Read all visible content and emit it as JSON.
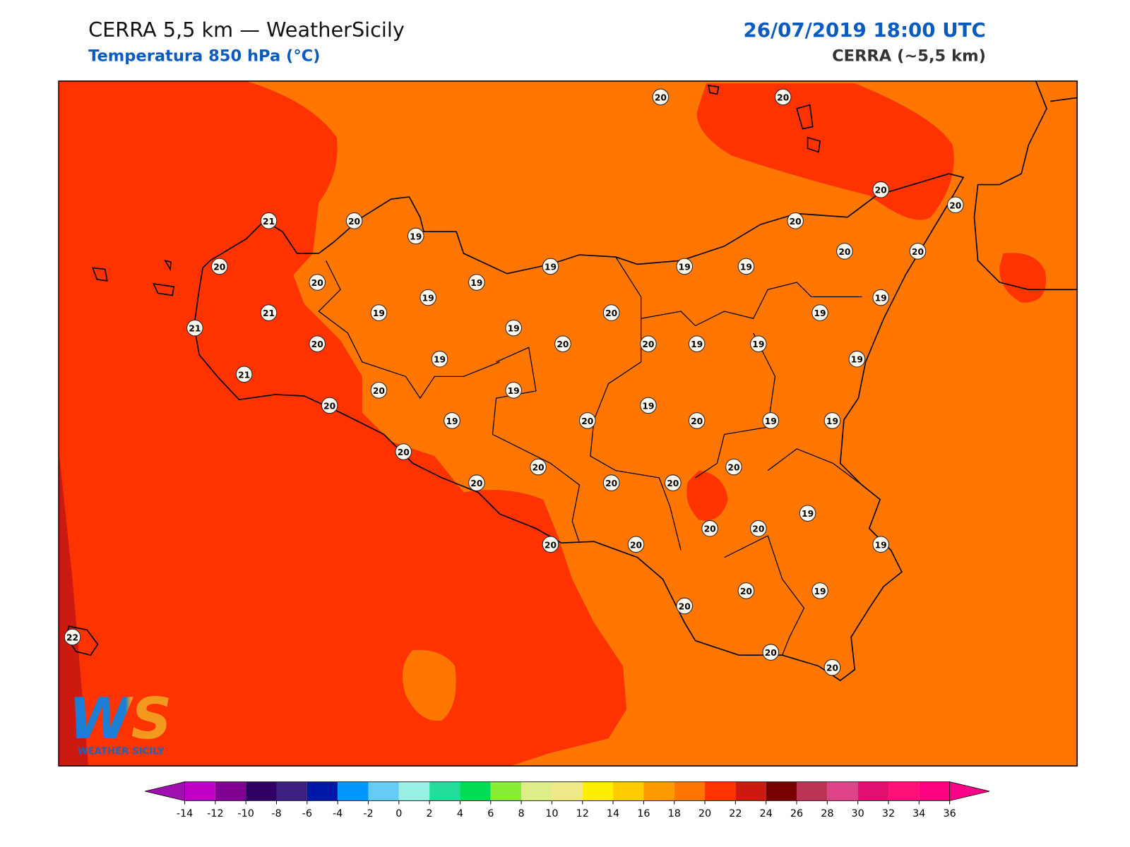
{
  "header": {
    "title": "CERRA 5,5 km — WeatherSicily",
    "subtitle": "Temperatura 850 hPa (°C)",
    "date": "26/07/2019 18:00 UTC",
    "model": "CERRA (~5,5 km)"
  },
  "stations": [
    20,
    20,
    20,
    20,
    21,
    20,
    19,
    20,
    20,
    20,
    19,
    19,
    19,
    19,
    19,
    20,
    20,
    21,
    19,
    19,
    20,
    19,
    19,
    21,
    20,
    20,
    20,
    19,
    19,
    19,
    19,
    21,
    20,
    19,
    20,
    19,
    20,
    19,
    20,
    19,
    19,
    20,
    20,
    20,
    20,
    20,
    20,
    19,
    20,
    20,
    20,
    20,
    19,
    20,
    19,
    20,
    22,
    20,
    20
  ],
  "colorbar": {
    "ticks": [
      -14,
      -12,
      -10,
      -8,
      -6,
      -4,
      -2,
      0,
      2,
      4,
      6,
      8,
      10,
      12,
      14,
      16,
      18,
      20,
      22,
      24,
      26,
      28,
      30,
      32,
      34,
      36
    ],
    "colors": [
      "#c000c8",
      "#800090",
      "#300060",
      "#3c2080",
      "#0018a8",
      "#0098ff",
      "#66ccf5",
      "#99eee6",
      "#22dd99",
      "#00dd55",
      "#88ee33",
      "#ddee88",
      "#eee888",
      "#ffee00",
      "#ffcc00",
      "#ff9900",
      "#ff7700",
      "#ff3300",
      "#cc1a11",
      "#770000",
      "#bb3355",
      "#dd4488",
      "#e01070",
      "#ff1177",
      "#ff0080"
    ],
    "under": "#a010b0",
    "over": "#ff0088"
  },
  "logo": {
    "mark": "WS",
    "text": "WEATHER SICILY"
  }
}
